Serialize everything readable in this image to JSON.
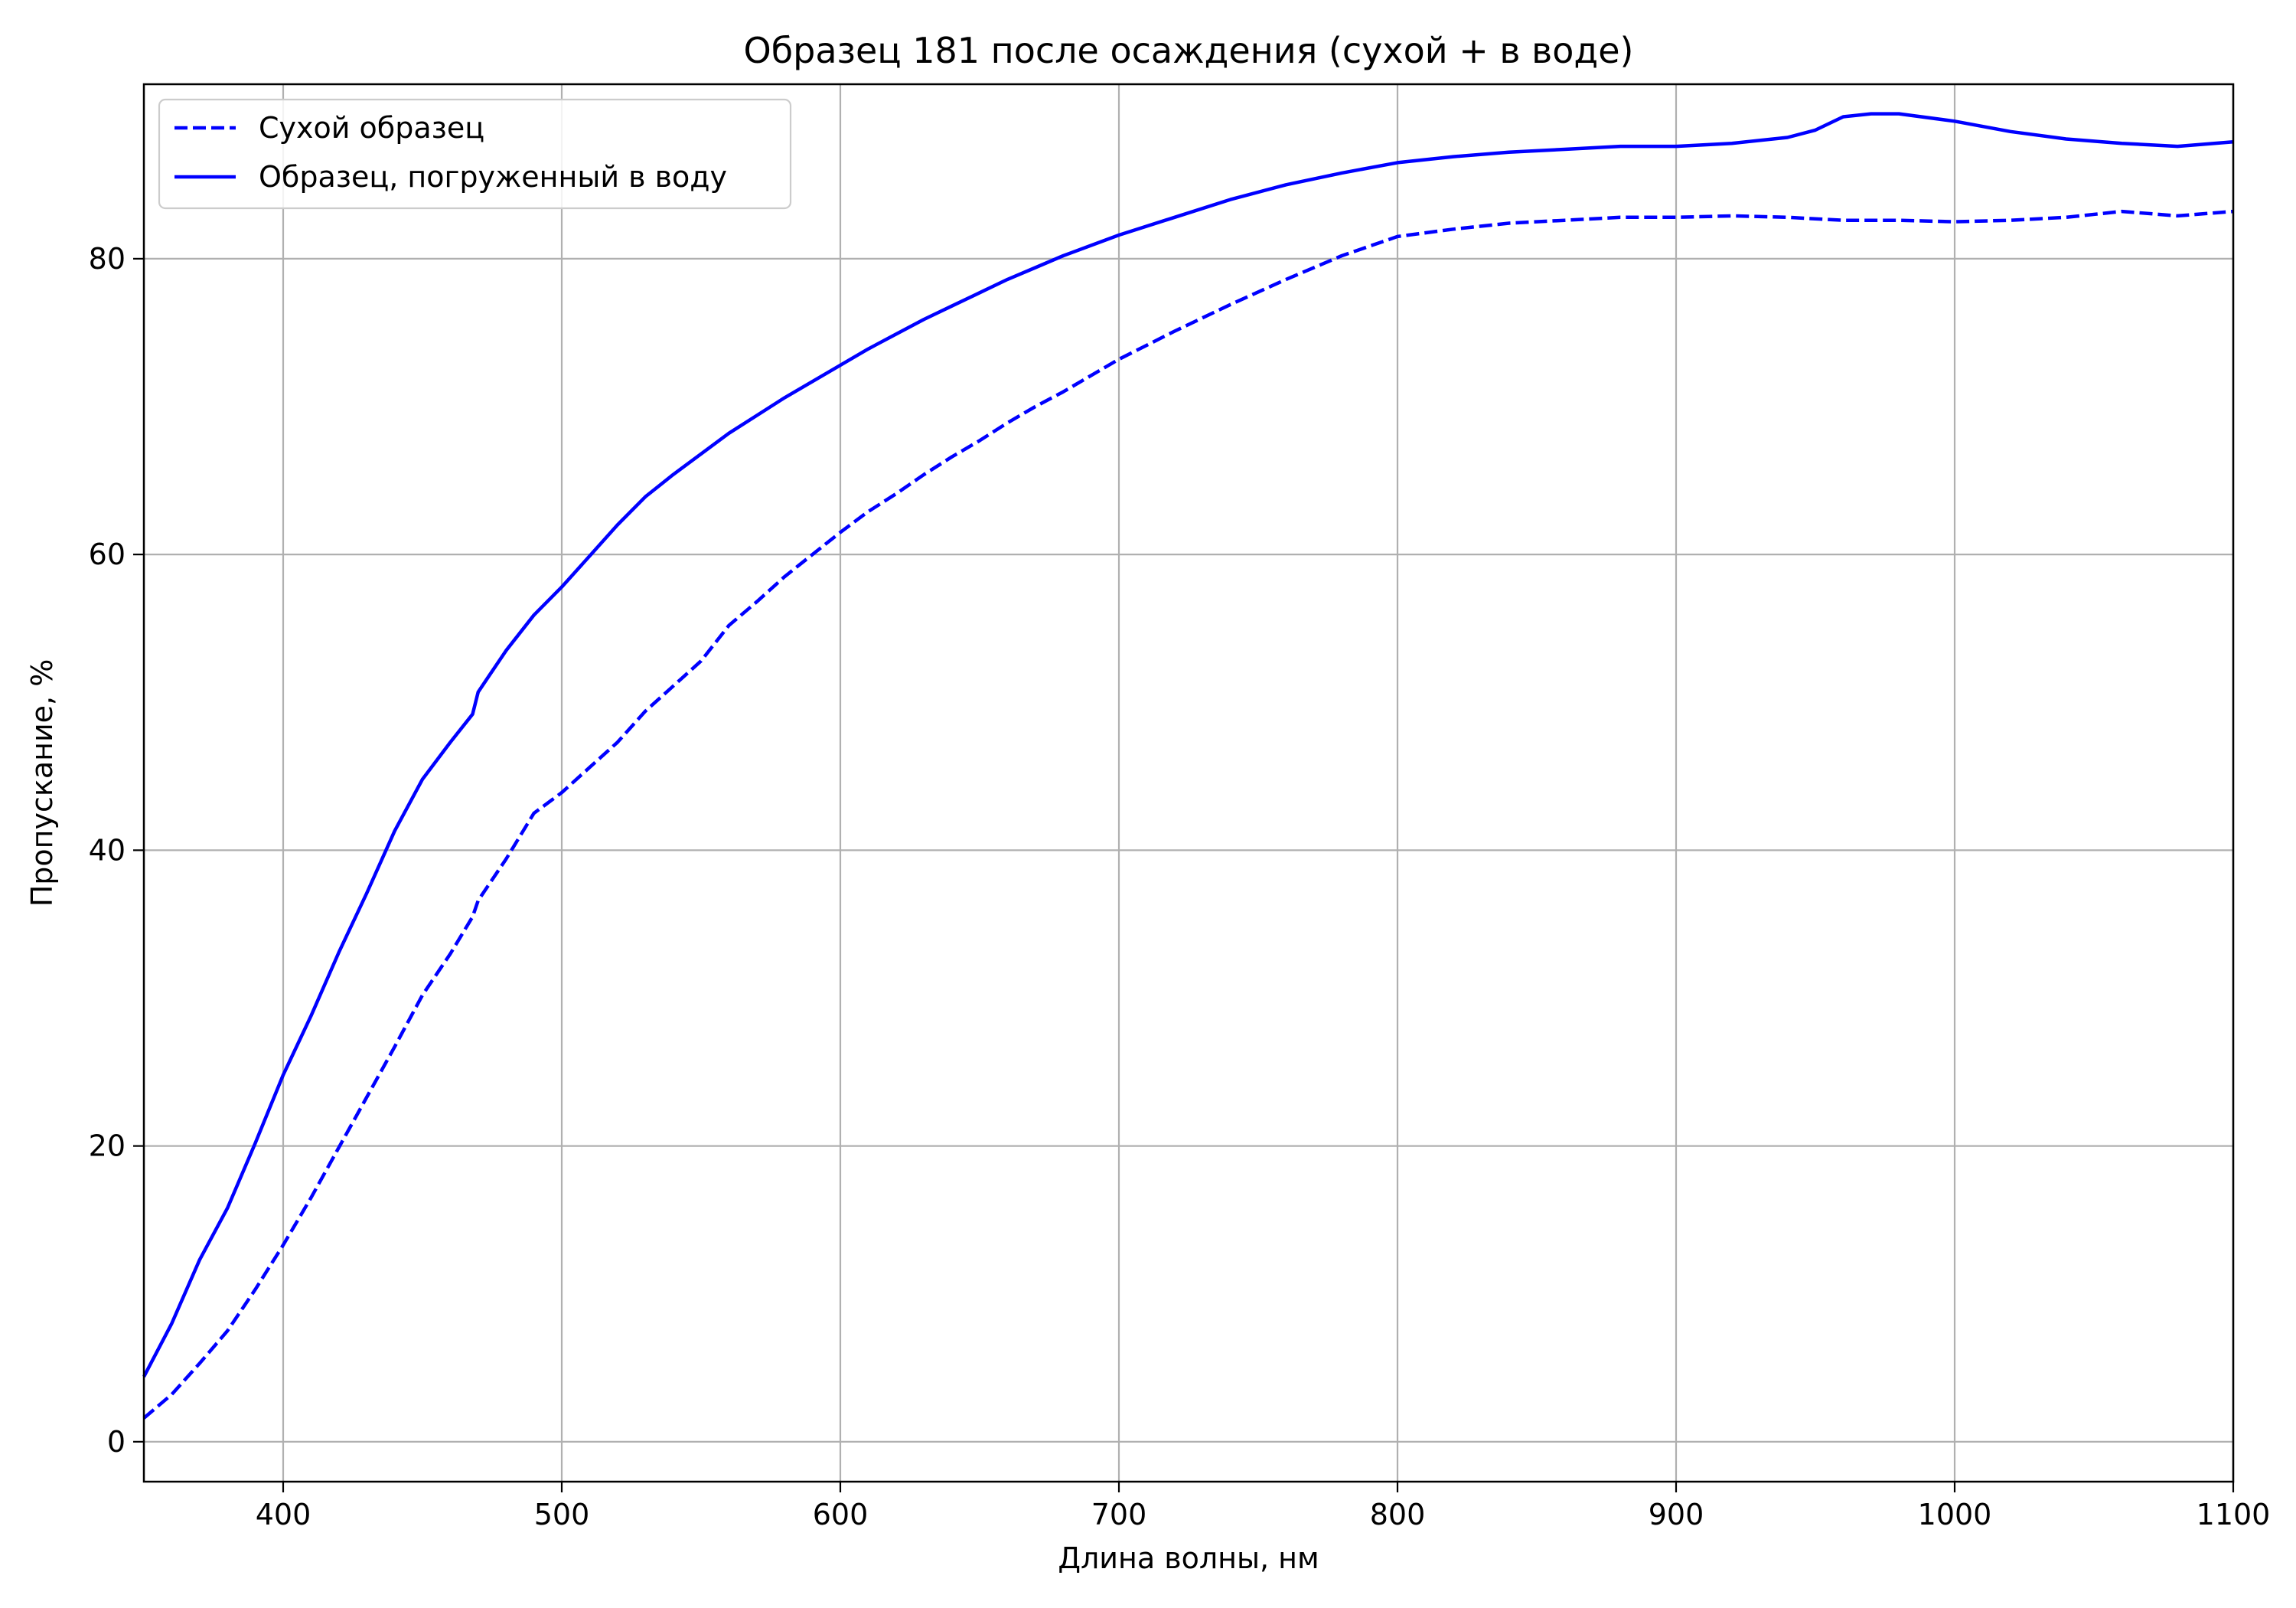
{
  "chart_data": {
    "type": "line",
    "title": "Образец 181 после осаждения (сухой + в воде)",
    "xlabel": "Длина волны, нм",
    "ylabel": "Пропускание, %",
    "xlim": [
      350,
      1100
    ],
    "ylim": [
      -2.7,
      91.8
    ],
    "xticks": [
      400,
      500,
      600,
      700,
      800,
      900,
      1000,
      1100
    ],
    "yticks": [
      0,
      20,
      40,
      60,
      80
    ],
    "grid": true,
    "legend_position": "top-left",
    "line_color": "#0000ff",
    "series": [
      {
        "name": "Сухой образец",
        "style": "dashed",
        "points": [
          [
            350,
            1.6
          ],
          [
            360,
            3.2
          ],
          [
            370,
            5.3
          ],
          [
            380,
            7.5
          ],
          [
            390,
            10.3
          ],
          [
            400,
            13.3
          ],
          [
            410,
            16.5
          ],
          [
            420,
            19.9
          ],
          [
            430,
            23.3
          ],
          [
            440,
            26.7
          ],
          [
            450,
            30.2
          ],
          [
            460,
            33.0
          ],
          [
            468,
            35.5
          ],
          [
            470,
            36.6
          ],
          [
            480,
            39.4
          ],
          [
            490,
            42.5
          ],
          [
            500,
            43.9
          ],
          [
            510,
            45.6
          ],
          [
            520,
            47.3
          ],
          [
            530,
            49.4
          ],
          [
            540,
            51.1
          ],
          [
            550,
            52.8
          ],
          [
            560,
            55.2
          ],
          [
            570,
            56.8
          ],
          [
            580,
            58.5
          ],
          [
            590,
            60.0
          ],
          [
            600,
            61.5
          ],
          [
            610,
            62.9
          ],
          [
            620,
            64.1
          ],
          [
            630,
            65.4
          ],
          [
            640,
            66.6
          ],
          [
            650,
            67.7
          ],
          [
            660,
            68.9
          ],
          [
            670,
            70.0
          ],
          [
            680,
            71.0
          ],
          [
            690,
            72.1
          ],
          [
            700,
            73.2
          ],
          [
            720,
            75.1
          ],
          [
            740,
            76.9
          ],
          [
            760,
            78.6
          ],
          [
            780,
            80.2
          ],
          [
            800,
            81.5
          ],
          [
            820,
            82.0
          ],
          [
            840,
            82.4
          ],
          [
            860,
            82.6
          ],
          [
            880,
            82.8
          ],
          [
            900,
            82.8
          ],
          [
            920,
            82.9
          ],
          [
            940,
            82.8
          ],
          [
            960,
            82.6
          ],
          [
            980,
            82.6
          ],
          [
            1000,
            82.5
          ],
          [
            1020,
            82.6
          ],
          [
            1040,
            82.8
          ],
          [
            1060,
            83.2
          ],
          [
            1080,
            82.9
          ],
          [
            1100,
            83.2
          ]
        ]
      },
      {
        "name": "Образец, погруженный в воду",
        "style": "solid",
        "points": [
          [
            350,
            4.4
          ],
          [
            360,
            8.0
          ],
          [
            370,
            12.3
          ],
          [
            380,
            15.8
          ],
          [
            390,
            20.2
          ],
          [
            400,
            24.8
          ],
          [
            410,
            28.8
          ],
          [
            420,
            33.1
          ],
          [
            430,
            37.1
          ],
          [
            440,
            41.3
          ],
          [
            450,
            44.8
          ],
          [
            460,
            47.3
          ],
          [
            468,
            49.2
          ],
          [
            470,
            50.7
          ],
          [
            480,
            53.5
          ],
          [
            490,
            55.9
          ],
          [
            500,
            57.8
          ],
          [
            510,
            59.9
          ],
          [
            520,
            62.0
          ],
          [
            530,
            63.9
          ],
          [
            540,
            65.4
          ],
          [
            550,
            66.8
          ],
          [
            560,
            68.2
          ],
          [
            570,
            69.4
          ],
          [
            580,
            70.6
          ],
          [
            590,
            71.7
          ],
          [
            600,
            72.8
          ],
          [
            610,
            73.9
          ],
          [
            620,
            74.9
          ],
          [
            630,
            75.9
          ],
          [
            640,
            76.8
          ],
          [
            650,
            77.7
          ],
          [
            660,
            78.6
          ],
          [
            670,
            79.4
          ],
          [
            680,
            80.2
          ],
          [
            690,
            80.9
          ],
          [
            700,
            81.6
          ],
          [
            720,
            82.8
          ],
          [
            740,
            84.0
          ],
          [
            760,
            85.0
          ],
          [
            780,
            85.8
          ],
          [
            800,
            86.5
          ],
          [
            820,
            86.9
          ],
          [
            840,
            87.2
          ],
          [
            860,
            87.4
          ],
          [
            880,
            87.6
          ],
          [
            900,
            87.6
          ],
          [
            920,
            87.8
          ],
          [
            940,
            88.2
          ],
          [
            950,
            88.7
          ],
          [
            960,
            89.6
          ],
          [
            970,
            89.8
          ],
          [
            980,
            89.8
          ],
          [
            1000,
            89.3
          ],
          [
            1020,
            88.6
          ],
          [
            1040,
            88.1
          ],
          [
            1060,
            87.8
          ],
          [
            1080,
            87.6
          ],
          [
            1100,
            87.9
          ]
        ]
      }
    ]
  }
}
